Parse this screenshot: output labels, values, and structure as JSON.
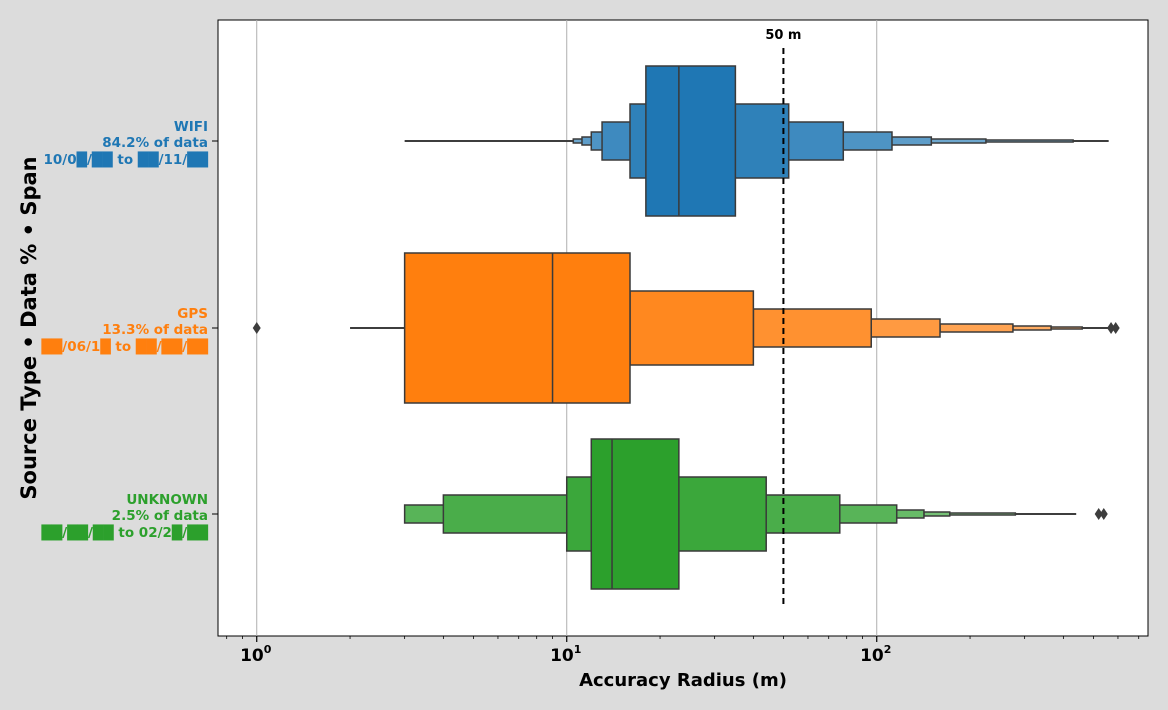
{
  "chart_data": {
    "type": "boxen",
    "orientation": "horizontal",
    "xscale": "log",
    "xlabel": "Accuracy Radius (m)",
    "ylabel": "Source Type • Data % • Span",
    "xlim": [
      0.75,
      750
    ],
    "grid": "vertical",
    "xticks": [
      {
        "base": "10",
        "exp": "0",
        "value": 1
      },
      {
        "base": "10",
        "exp": "1",
        "value": 10
      },
      {
        "base": "10",
        "exp": "2",
        "value": 100
      }
    ],
    "reference_line": {
      "value": 50,
      "label": "50 m",
      "style": "dashed"
    },
    "categories": [
      {
        "name": "WIFI",
        "pct_label": "84.2% of data",
        "span_label": "10/0█/██ to ██/11/██",
        "color": "#1f77b4",
        "median": 23,
        "whisker": [
          3,
          560
        ],
        "boxes": [
          [
            18,
            35
          ],
          [
            16,
            52
          ],
          [
            13,
            78
          ],
          [
            12,
            112
          ],
          [
            11.2,
            150
          ],
          [
            10.5,
            225
          ],
          [
            10.5,
            430
          ]
        ],
        "outliers": []
      },
      {
        "name": "GPS",
        "pct_label": "13.3% of data",
        "span_label": "██/06/1█ to ██/██/██",
        "color": "#ff7f0e",
        "median": 9,
        "whisker": [
          2,
          580
        ],
        "boxes": [
          [
            3,
            16
          ],
          [
            16,
            40
          ],
          [
            40,
            96
          ],
          [
            96,
            160
          ],
          [
            160,
            275
          ],
          [
            275,
            365
          ],
          [
            365,
            460
          ]
        ],
        "outliers": [
          1,
          570,
          590
        ]
      },
      {
        "name": "UNKNOWN",
        "pct_label": "2.5% of data",
        "span_label": "██/██/██ to 02/2█/██",
        "color": "#2ca02c",
        "median": 14,
        "whisker": [
          3,
          440
        ],
        "boxes": [
          [
            12,
            23
          ],
          [
            10,
            44
          ],
          [
            4,
            76
          ],
          [
            3,
            116
          ],
          [
            116,
            142
          ],
          [
            142,
            172
          ],
          [
            172,
            280
          ]
        ],
        "outliers": [
          520,
          540
        ]
      }
    ]
  }
}
